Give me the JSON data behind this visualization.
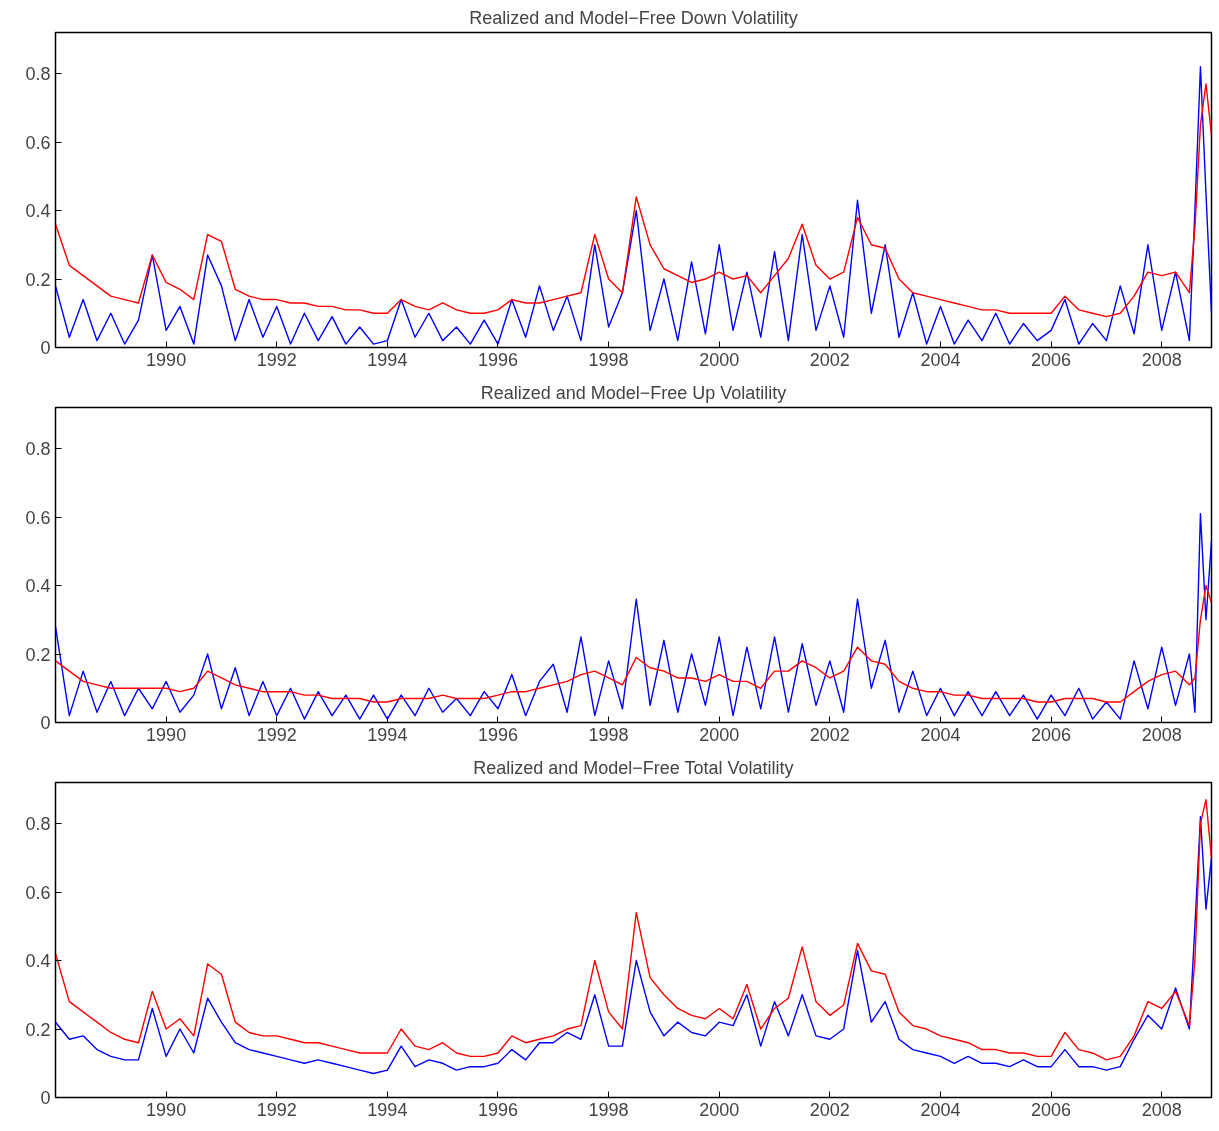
{
  "chart_data": [
    {
      "type": "line",
      "title": "Realized and Model−Free Down Volatility",
      "x": [
        1988.0,
        1988.25,
        1988.5,
        1988.75,
        1989.0,
        1989.25,
        1989.5,
        1989.75,
        1990.0,
        1990.25,
        1990.5,
        1990.75,
        1991.0,
        1991.25,
        1991.5,
        1991.75,
        1992.0,
        1992.25,
        1992.5,
        1992.75,
        1993.0,
        1993.25,
        1993.5,
        1993.75,
        1994.0,
        1994.25,
        1994.5,
        1994.75,
        1995.0,
        1995.25,
        1995.5,
        1995.75,
        1996.0,
        1996.25,
        1996.5,
        1996.75,
        1997.0,
        1997.25,
        1997.5,
        1997.75,
        1998.0,
        1998.25,
        1998.5,
        1998.75,
        1999.0,
        1999.25,
        1999.5,
        1999.75,
        2000.0,
        2000.25,
        2000.5,
        2000.75,
        2001.0,
        2001.25,
        2001.5,
        2001.75,
        2002.0,
        2002.25,
        2002.5,
        2002.75,
        2003.0,
        2003.25,
        2003.5,
        2003.75,
        2004.0,
        2004.25,
        2004.5,
        2004.75,
        2005.0,
        2005.25,
        2005.5,
        2005.75,
        2006.0,
        2006.25,
        2006.5,
        2006.75,
        2007.0,
        2007.25,
        2007.5,
        2007.75,
        2008.0,
        2008.25,
        2008.5,
        2008.6,
        2008.7,
        2008.8,
        2008.9
      ],
      "xlim": [
        1988,
        2008.9
      ],
      "xticks": [
        1990,
        1992,
        1994,
        1996,
        1998,
        2000,
        2002,
        2004,
        2006,
        2008
      ],
      "ylim": [
        0,
        0.92
      ],
      "yticks": [
        0,
        0.2,
        0.4,
        0.6,
        0.8
      ],
      "series": [
        {
          "color": "#0000ff",
          "values": [
            0.18,
            0.03,
            0.14,
            0.02,
            0.1,
            0.01,
            0.08,
            0.27,
            0.05,
            0.12,
            0.01,
            0.27,
            0.18,
            0.02,
            0.14,
            0.03,
            0.12,
            0.01,
            0.1,
            0.02,
            0.09,
            0.01,
            0.06,
            0.01,
            0.02,
            0.14,
            0.03,
            0.1,
            0.02,
            0.06,
            0.01,
            0.08,
            0.01,
            0.14,
            0.03,
            0.18,
            0.05,
            0.15,
            0.02,
            0.3,
            0.06,
            0.16,
            0.4,
            0.05,
            0.2,
            0.02,
            0.25,
            0.04,
            0.3,
            0.05,
            0.22,
            0.03,
            0.28,
            0.02,
            0.33,
            0.05,
            0.18,
            0.03,
            0.43,
            0.1,
            0.3,
            0.03,
            0.16,
            0.01,
            0.12,
            0.01,
            0.08,
            0.02,
            0.1,
            0.01,
            0.07,
            0.02,
            0.05,
            0.14,
            0.01,
            0.07,
            0.02,
            0.18,
            0.04,
            0.3,
            0.05,
            0.22,
            0.02,
            0.4,
            0.82,
            0.45,
            0.1
          ]
        },
        {
          "color": "#ff0000",
          "values": [
            0.36,
            0.24,
            0.21,
            0.18,
            0.15,
            0.14,
            0.13,
            0.27,
            0.19,
            0.17,
            0.14,
            0.33,
            0.31,
            0.17,
            0.15,
            0.14,
            0.14,
            0.13,
            0.13,
            0.12,
            0.12,
            0.11,
            0.11,
            0.1,
            0.1,
            0.14,
            0.12,
            0.11,
            0.13,
            0.11,
            0.1,
            0.1,
            0.11,
            0.14,
            0.13,
            0.13,
            0.14,
            0.15,
            0.16,
            0.33,
            0.2,
            0.16,
            0.44,
            0.3,
            0.23,
            0.21,
            0.19,
            0.2,
            0.22,
            0.2,
            0.21,
            0.16,
            0.21,
            0.26,
            0.36,
            0.24,
            0.2,
            0.22,
            0.38,
            0.3,
            0.29,
            0.2,
            0.16,
            0.15,
            0.14,
            0.13,
            0.12,
            0.11,
            0.11,
            0.1,
            0.1,
            0.1,
            0.1,
            0.15,
            0.11,
            0.1,
            0.09,
            0.1,
            0.15,
            0.22,
            0.21,
            0.22,
            0.16,
            0.35,
            0.65,
            0.77,
            0.62
          ]
        }
      ]
    },
    {
      "type": "line",
      "title": "Realized and Model−Free Up Volatility",
      "x": [
        1988.0,
        1988.25,
        1988.5,
        1988.75,
        1989.0,
        1989.25,
        1989.5,
        1989.75,
        1990.0,
        1990.25,
        1990.5,
        1990.75,
        1991.0,
        1991.25,
        1991.5,
        1991.75,
        1992.0,
        1992.25,
        1992.5,
        1992.75,
        1993.0,
        1993.25,
        1993.5,
        1993.75,
        1994.0,
        1994.25,
        1994.5,
        1994.75,
        1995.0,
        1995.25,
        1995.5,
        1995.75,
        1996.0,
        1996.25,
        1996.5,
        1996.75,
        1997.0,
        1997.25,
        1997.5,
        1997.75,
        1998.0,
        1998.25,
        1998.5,
        1998.75,
        1999.0,
        1999.25,
        1999.5,
        1999.75,
        2000.0,
        2000.25,
        2000.5,
        2000.75,
        2001.0,
        2001.25,
        2001.5,
        2001.75,
        2002.0,
        2002.25,
        2002.5,
        2002.75,
        2003.0,
        2003.25,
        2003.5,
        2003.75,
        2004.0,
        2004.25,
        2004.5,
        2004.75,
        2005.0,
        2005.25,
        2005.5,
        2005.75,
        2006.0,
        2006.25,
        2006.5,
        2006.75,
        2007.0,
        2007.25,
        2007.5,
        2007.75,
        2008.0,
        2008.25,
        2008.5,
        2008.6,
        2008.7,
        2008.8,
        2008.9
      ],
      "xlim": [
        1988,
        2008.9
      ],
      "xticks": [
        1990,
        1992,
        1994,
        1996,
        1998,
        2000,
        2002,
        2004,
        2006,
        2008
      ],
      "ylim": [
        0,
        0.92
      ],
      "yticks": [
        0,
        0.2,
        0.4,
        0.6,
        0.8
      ],
      "series": [
        {
          "color": "#0000ff",
          "values": [
            0.28,
            0.02,
            0.15,
            0.03,
            0.12,
            0.02,
            0.1,
            0.04,
            0.12,
            0.03,
            0.08,
            0.2,
            0.04,
            0.16,
            0.02,
            0.12,
            0.02,
            0.1,
            0.01,
            0.09,
            0.02,
            0.08,
            0.01,
            0.08,
            0.01,
            0.08,
            0.02,
            0.1,
            0.03,
            0.07,
            0.02,
            0.09,
            0.04,
            0.14,
            0.02,
            0.12,
            0.17,
            0.03,
            0.25,
            0.02,
            0.18,
            0.04,
            0.36,
            0.05,
            0.24,
            0.03,
            0.2,
            0.05,
            0.25,
            0.02,
            0.22,
            0.04,
            0.25,
            0.03,
            0.23,
            0.05,
            0.18,
            0.03,
            0.36,
            0.1,
            0.24,
            0.03,
            0.15,
            0.02,
            0.1,
            0.02,
            0.09,
            0.02,
            0.09,
            0.02,
            0.08,
            0.01,
            0.08,
            0.02,
            0.1,
            0.01,
            0.06,
            0.01,
            0.18,
            0.04,
            0.22,
            0.05,
            0.2,
            0.03,
            0.61,
            0.3,
            0.53
          ]
        },
        {
          "color": "#ff0000",
          "values": [
            0.18,
            0.15,
            0.12,
            0.11,
            0.1,
            0.1,
            0.1,
            0.1,
            0.1,
            0.09,
            0.1,
            0.15,
            0.13,
            0.11,
            0.1,
            0.09,
            0.09,
            0.09,
            0.08,
            0.08,
            0.07,
            0.07,
            0.07,
            0.06,
            0.06,
            0.07,
            0.07,
            0.07,
            0.08,
            0.07,
            0.07,
            0.07,
            0.08,
            0.09,
            0.09,
            0.1,
            0.11,
            0.12,
            0.14,
            0.15,
            0.13,
            0.11,
            0.19,
            0.16,
            0.15,
            0.13,
            0.13,
            0.12,
            0.14,
            0.12,
            0.12,
            0.1,
            0.15,
            0.15,
            0.18,
            0.16,
            0.13,
            0.15,
            0.22,
            0.18,
            0.17,
            0.12,
            0.1,
            0.09,
            0.09,
            0.08,
            0.08,
            0.07,
            0.07,
            0.07,
            0.07,
            0.06,
            0.06,
            0.07,
            0.07,
            0.07,
            0.06,
            0.06,
            0.09,
            0.12,
            0.14,
            0.15,
            0.11,
            0.13,
            0.3,
            0.4,
            0.35
          ]
        }
      ]
    },
    {
      "type": "line",
      "title": "Realized and Model−Free Total Volatility",
      "x": [
        1988.0,
        1988.25,
        1988.5,
        1988.75,
        1989.0,
        1989.25,
        1989.5,
        1989.75,
        1990.0,
        1990.25,
        1990.5,
        1990.75,
        1991.0,
        1991.25,
        1991.5,
        1991.75,
        1992.0,
        1992.25,
        1992.5,
        1992.75,
        1993.0,
        1993.25,
        1993.5,
        1993.75,
        1994.0,
        1994.25,
        1994.5,
        1994.75,
        1995.0,
        1995.25,
        1995.5,
        1995.75,
        1996.0,
        1996.25,
        1996.5,
        1996.75,
        1997.0,
        1997.25,
        1997.5,
        1997.75,
        1998.0,
        1998.25,
        1998.5,
        1998.75,
        1999.0,
        1999.25,
        1999.5,
        1999.75,
        2000.0,
        2000.25,
        2000.5,
        2000.75,
        2001.0,
        2001.25,
        2001.5,
        2001.75,
        2002.0,
        2002.25,
        2002.5,
        2002.75,
        2003.0,
        2003.25,
        2003.5,
        2003.75,
        2004.0,
        2004.25,
        2004.5,
        2004.75,
        2005.0,
        2005.25,
        2005.5,
        2005.75,
        2006.0,
        2006.25,
        2006.5,
        2006.75,
        2007.0,
        2007.25,
        2007.5,
        2007.75,
        2008.0,
        2008.25,
        2008.5,
        2008.6,
        2008.7,
        2008.8,
        2008.9
      ],
      "xlim": [
        1988,
        2008.9
      ],
      "xticks": [
        1990,
        1992,
        1994,
        1996,
        1998,
        2000,
        2002,
        2004,
        2006,
        2008
      ],
      "ylim": [
        0,
        0.92
      ],
      "yticks": [
        0,
        0.2,
        0.4,
        0.6,
        0.8
      ],
      "series": [
        {
          "color": "#0000ff",
          "values": [
            0.22,
            0.17,
            0.18,
            0.14,
            0.12,
            0.11,
            0.11,
            0.26,
            0.12,
            0.2,
            0.13,
            0.29,
            0.22,
            0.16,
            0.14,
            0.13,
            0.12,
            0.11,
            0.1,
            0.11,
            0.1,
            0.09,
            0.08,
            0.07,
            0.08,
            0.15,
            0.09,
            0.11,
            0.1,
            0.08,
            0.09,
            0.09,
            0.1,
            0.14,
            0.11,
            0.16,
            0.16,
            0.19,
            0.17,
            0.3,
            0.15,
            0.15,
            0.4,
            0.25,
            0.18,
            0.22,
            0.19,
            0.18,
            0.22,
            0.21,
            0.3,
            0.15,
            0.28,
            0.18,
            0.3,
            0.18,
            0.17,
            0.2,
            0.43,
            0.22,
            0.28,
            0.17,
            0.14,
            0.13,
            0.12,
            0.1,
            0.12,
            0.1,
            0.1,
            0.09,
            0.11,
            0.09,
            0.09,
            0.14,
            0.09,
            0.09,
            0.08,
            0.09,
            0.17,
            0.24,
            0.2,
            0.32,
            0.2,
            0.5,
            0.82,
            0.55,
            0.7
          ]
        },
        {
          "color": "#ff0000",
          "values": [
            0.42,
            0.28,
            0.25,
            0.22,
            0.19,
            0.17,
            0.16,
            0.31,
            0.2,
            0.23,
            0.18,
            0.39,
            0.36,
            0.22,
            0.19,
            0.18,
            0.18,
            0.17,
            0.16,
            0.16,
            0.15,
            0.14,
            0.13,
            0.13,
            0.13,
            0.2,
            0.15,
            0.14,
            0.16,
            0.13,
            0.12,
            0.12,
            0.13,
            0.18,
            0.16,
            0.17,
            0.18,
            0.2,
            0.21,
            0.4,
            0.25,
            0.2,
            0.54,
            0.35,
            0.3,
            0.26,
            0.24,
            0.23,
            0.26,
            0.23,
            0.33,
            0.2,
            0.26,
            0.29,
            0.44,
            0.28,
            0.24,
            0.27,
            0.45,
            0.37,
            0.36,
            0.25,
            0.21,
            0.2,
            0.18,
            0.17,
            0.16,
            0.14,
            0.14,
            0.13,
            0.13,
            0.12,
            0.12,
            0.19,
            0.14,
            0.13,
            0.11,
            0.12,
            0.18,
            0.28,
            0.26,
            0.31,
            0.21,
            0.4,
            0.8,
            0.87,
            0.7
          ]
        }
      ]
    }
  ]
}
